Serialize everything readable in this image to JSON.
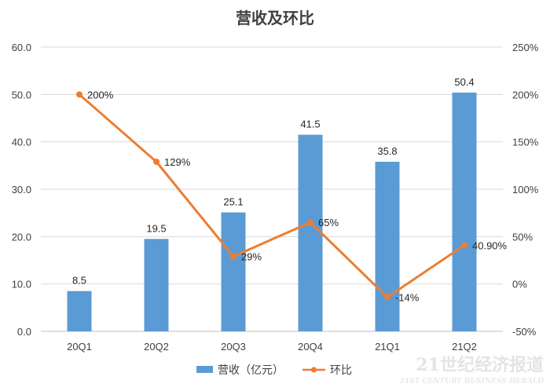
{
  "chart_data": {
    "type": "bar+line",
    "title": "营收及环比",
    "categories": [
      "20Q1",
      "20Q2",
      "20Q3",
      "20Q4",
      "21Q1",
      "21Q2"
    ],
    "bar_series": {
      "name": "营收（亿元）",
      "values": [
        8.5,
        19.5,
        25.1,
        41.5,
        35.8,
        50.4
      ],
      "labels": [
        "8.5",
        "19.5",
        "25.1",
        "41.5",
        "35.8",
        "50.4"
      ],
      "color": "#5b9bd5"
    },
    "line_series": {
      "name": "环比",
      "values": [
        200,
        129,
        29,
        65,
        -14,
        40.9
      ],
      "labels": [
        "200%",
        "129%",
        "29%",
        "65%",
        "-14%",
        "40.90%"
      ],
      "color": "#ed7d31"
    },
    "y_left": {
      "min": 0,
      "max": 60,
      "ticks": [
        "0.0",
        "10.0",
        "20.0",
        "30.0",
        "40.0",
        "50.0",
        "60.0"
      ]
    },
    "y_right": {
      "min": -50,
      "max": 250,
      "ticks": [
        "-50%",
        "0%",
        "50%",
        "100%",
        "150%",
        "200%",
        "250%"
      ]
    },
    "grid": true,
    "legend": "bottom"
  },
  "watermark": {
    "main": "21世纪经济报道",
    "sub": "21ST CENTURY BUSINESS HERALD"
  }
}
